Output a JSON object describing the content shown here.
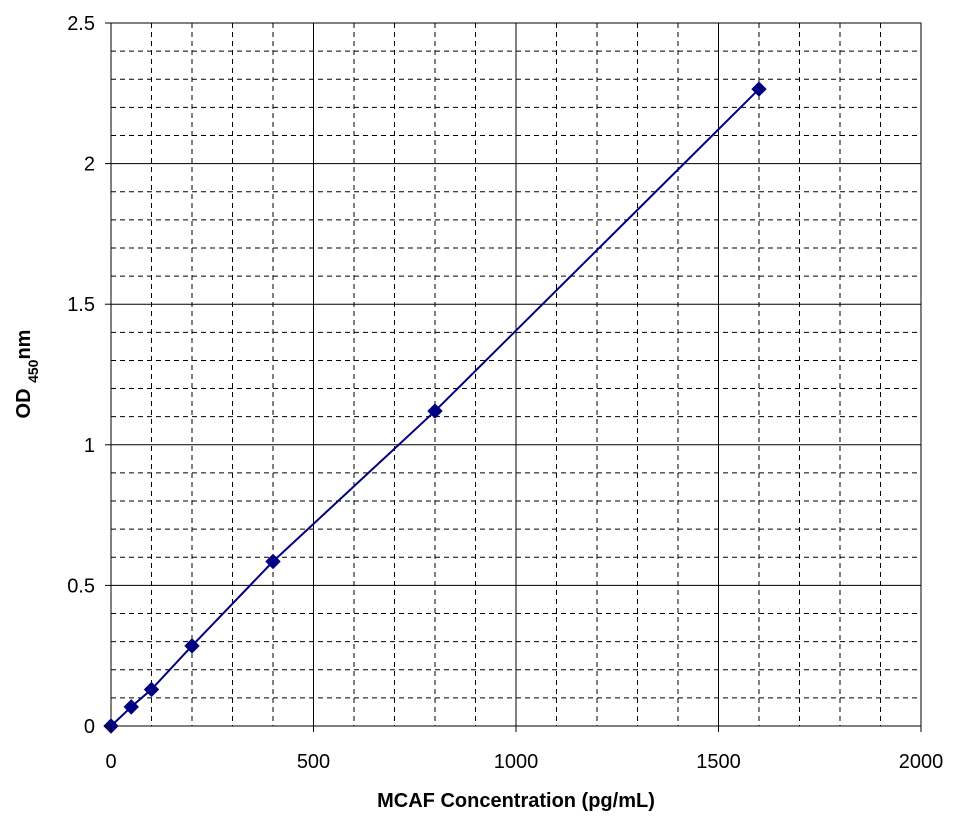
{
  "chart_data": {
    "type": "line",
    "title": "",
    "xlabel": "MCAF Concentration (pg/mL)",
    "ylabel": {
      "prefix": "OD ",
      "subscript": "450",
      "suffix": "nm"
    },
    "xlim": [
      0,
      2000
    ],
    "ylim": [
      0,
      2.5
    ],
    "x_ticks": [
      0,
      500,
      1000,
      1500,
      2000
    ],
    "x_tick_labels": [
      "0",
      "500",
      "1000",
      "1500",
      "2000"
    ],
    "y_ticks": [
      0,
      0.5,
      1,
      1.5,
      2,
      2.5
    ],
    "y_tick_labels": [
      "0",
      "0.5",
      "1",
      "1.5",
      "2",
      "2.5"
    ],
    "x_minor_step": 100,
    "y_minor_step": 0.1,
    "grid": true,
    "legend": "none",
    "series": [
      {
        "marker": "diamond",
        "color": "#000080",
        "points": [
          {
            "x": 0,
            "y": 0.0
          },
          {
            "x": 50,
            "y": 0.068
          },
          {
            "x": 100,
            "y": 0.13
          },
          {
            "x": 200,
            "y": 0.285
          },
          {
            "x": 400,
            "y": 0.585
          },
          {
            "x": 800,
            "y": 1.12
          },
          {
            "x": 1600,
            "y": 2.265
          }
        ]
      }
    ]
  }
}
